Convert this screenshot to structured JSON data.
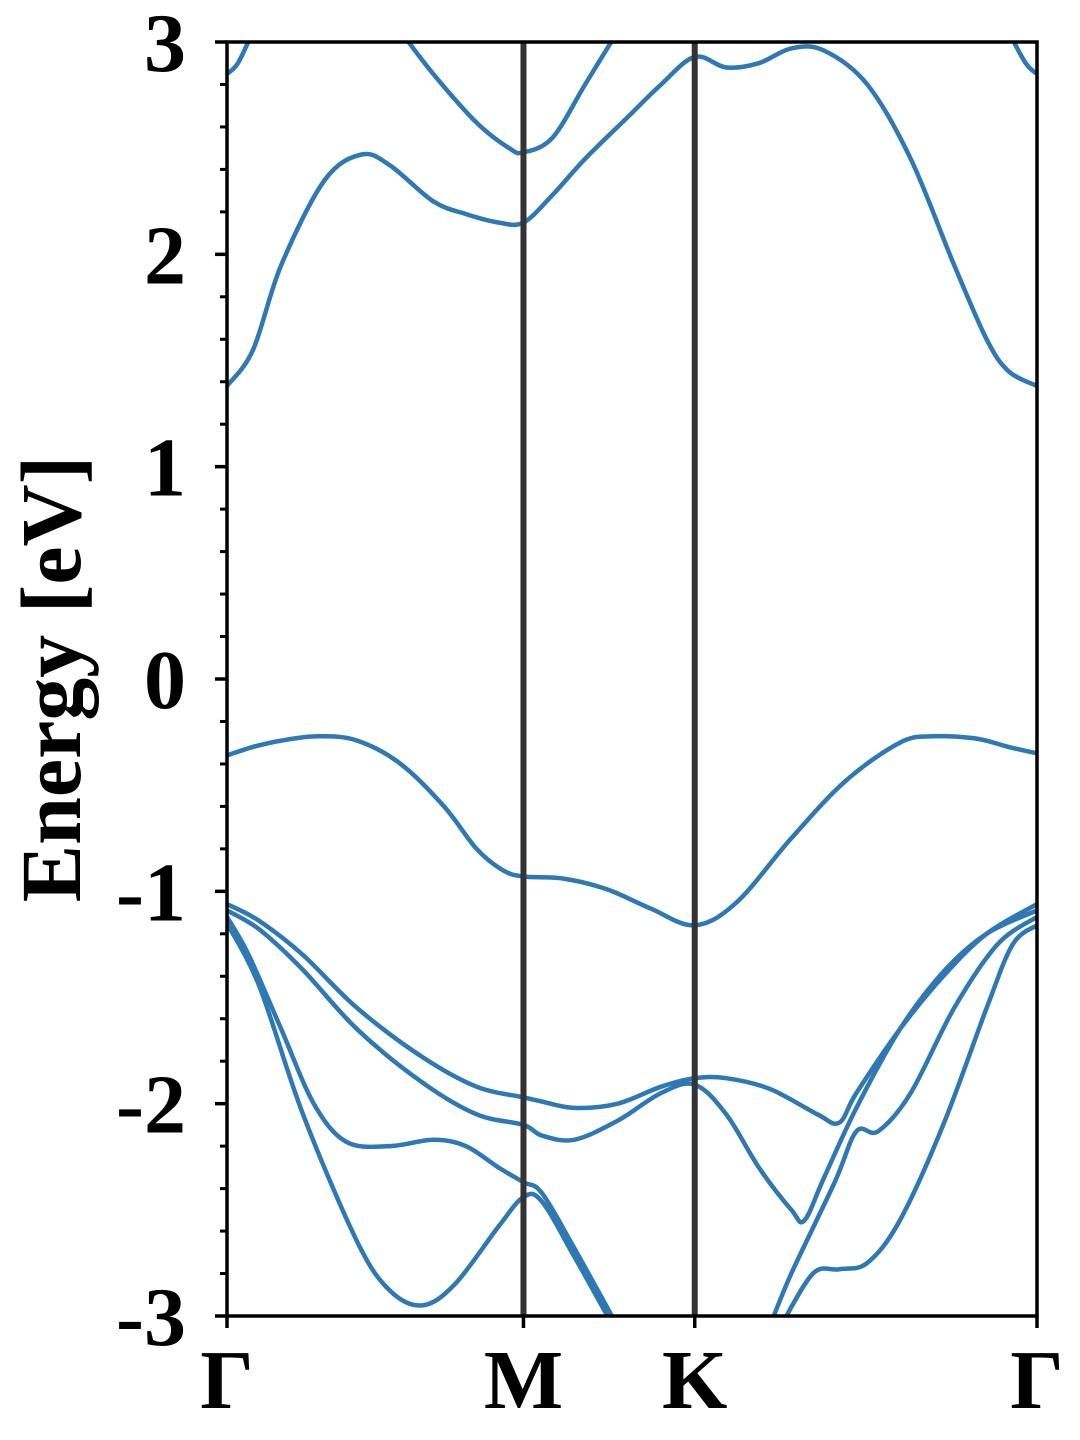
{
  "chart_data": {
    "type": "line",
    "title": "",
    "xlabel": "",
    "ylabel": "Energy [eV]",
    "ylim": [
      -3,
      3
    ],
    "yticks": [
      -3,
      -2,
      -1,
      0,
      1,
      2,
      3
    ],
    "ytick_labels": [
      "-3",
      "-2",
      "-1",
      "0",
      "1",
      "2",
      "3"
    ],
    "x_domain": [
      0,
      3.732
    ],
    "high_symmetry_points": [
      {
        "label": "Γ",
        "x": 0.0
      },
      {
        "label": "M",
        "x": 1.366
      },
      {
        "label": "K",
        "x": 2.155
      },
      {
        "label": "Γ",
        "x": 3.732
      }
    ],
    "grid": false,
    "legend": "none",
    "colors": {
      "bands": "#2e78b4",
      "kpath_lines": "#333333",
      "axes": "#000000"
    },
    "series": [
      {
        "values": [
          [
            0.0,
            -0.36
          ],
          [
            0.12,
            -0.32
          ],
          [
            0.25,
            -0.29
          ],
          [
            0.42,
            -0.27
          ],
          [
            0.6,
            -0.29
          ],
          [
            0.8,
            -0.4
          ],
          [
            1.0,
            -0.6
          ],
          [
            1.15,
            -0.8
          ],
          [
            1.27,
            -0.9
          ],
          [
            1.366,
            -0.93
          ],
          [
            1.55,
            -0.94
          ],
          [
            1.75,
            -0.99
          ],
          [
            1.95,
            -1.08
          ],
          [
            2.155,
            -1.16
          ],
          [
            2.35,
            -1.05
          ],
          [
            2.6,
            -0.75
          ],
          [
            2.85,
            -0.48
          ],
          [
            3.1,
            -0.3
          ],
          [
            3.25,
            -0.27
          ],
          [
            3.45,
            -0.28
          ],
          [
            3.6,
            -0.32
          ],
          [
            3.732,
            -0.35
          ]
        ]
      },
      {
        "values": [
          [
            0.0,
            1.38
          ],
          [
            0.12,
            1.55
          ],
          [
            0.25,
            1.95
          ],
          [
            0.45,
            2.35
          ],
          [
            0.62,
            2.47
          ],
          [
            0.75,
            2.42
          ],
          [
            0.95,
            2.25
          ],
          [
            1.1,
            2.19
          ],
          [
            1.25,
            2.15
          ],
          [
            1.366,
            2.15
          ],
          [
            1.5,
            2.28
          ],
          [
            1.65,
            2.45
          ],
          [
            1.85,
            2.65
          ],
          [
            2.0,
            2.8
          ],
          [
            2.155,
            2.93
          ],
          [
            2.3,
            2.88
          ],
          [
            2.45,
            2.9
          ],
          [
            2.6,
            2.97
          ],
          [
            2.75,
            2.96
          ],
          [
            2.95,
            2.8
          ],
          [
            3.15,
            2.45
          ],
          [
            3.35,
            1.95
          ],
          [
            3.5,
            1.6
          ],
          [
            3.6,
            1.45
          ],
          [
            3.732,
            1.38
          ]
        ]
      },
      {
        "values": [
          [
            0.0,
            2.85
          ],
          [
            0.05,
            2.9
          ],
          [
            0.12,
            3.05
          ]
        ]
      },
      {
        "values": [
          [
            0.8,
            3.05
          ],
          [
            0.95,
            2.85
          ],
          [
            1.15,
            2.62
          ],
          [
            1.3,
            2.5
          ],
          [
            1.366,
            2.48
          ],
          [
            1.5,
            2.55
          ],
          [
            1.65,
            2.8
          ],
          [
            1.8,
            3.05
          ]
        ]
      },
      {
        "values": [
          [
            3.6,
            3.05
          ],
          [
            3.68,
            2.9
          ],
          [
            3.732,
            2.85
          ]
        ]
      },
      {
        "values": [
          [
            0.0,
            -1.06
          ],
          [
            0.15,
            -1.14
          ],
          [
            0.35,
            -1.3
          ],
          [
            0.6,
            -1.55
          ],
          [
            0.9,
            -1.78
          ],
          [
            1.15,
            -1.92
          ],
          [
            1.366,
            -1.97
          ],
          [
            1.45,
            -1.99
          ],
          [
            1.6,
            -2.02
          ],
          [
            1.8,
            -2.0
          ],
          [
            2.0,
            -1.92
          ],
          [
            2.155,
            -1.88
          ],
          [
            2.3,
            -1.88
          ],
          [
            2.5,
            -1.93
          ],
          [
            2.72,
            -2.05
          ],
          [
            2.82,
            -2.09
          ],
          [
            2.9,
            -1.95
          ],
          [
            3.1,
            -1.65
          ],
          [
            3.3,
            -1.4
          ],
          [
            3.5,
            -1.2
          ],
          [
            3.732,
            -1.06
          ]
        ]
      },
      {
        "values": [
          [
            0.0,
            -1.09
          ],
          [
            0.15,
            -1.18
          ],
          [
            0.35,
            -1.37
          ],
          [
            0.6,
            -1.65
          ],
          [
            0.9,
            -1.9
          ],
          [
            1.15,
            -2.05
          ],
          [
            1.366,
            -2.1
          ],
          [
            1.45,
            -2.15
          ],
          [
            1.6,
            -2.17
          ],
          [
            1.8,
            -2.08
          ],
          [
            2.0,
            -1.95
          ],
          [
            2.155,
            -1.91
          ],
          [
            2.3,
            -2.05
          ],
          [
            2.45,
            -2.3
          ],
          [
            2.6,
            -2.5
          ],
          [
            2.66,
            -2.55
          ],
          [
            2.75,
            -2.35
          ],
          [
            2.9,
            -2.02
          ],
          [
            3.1,
            -1.65
          ],
          [
            3.3,
            -1.38
          ],
          [
            3.5,
            -1.2
          ],
          [
            3.732,
            -1.09
          ]
        ]
      },
      {
        "values": [
          [
            0.0,
            -1.12
          ],
          [
            0.1,
            -1.3
          ],
          [
            0.25,
            -1.65
          ],
          [
            0.4,
            -2.0
          ],
          [
            0.55,
            -2.18
          ],
          [
            0.75,
            -2.2
          ],
          [
            0.95,
            -2.17
          ],
          [
            1.1,
            -2.2
          ],
          [
            1.25,
            -2.3
          ],
          [
            1.366,
            -2.37
          ],
          [
            1.45,
            -2.42
          ],
          [
            1.6,
            -2.68
          ],
          [
            1.8,
            -3.05
          ]
        ]
      },
      {
        "values": [
          [
            0.0,
            -1.15
          ],
          [
            0.15,
            -1.45
          ],
          [
            0.35,
            -2.05
          ],
          [
            0.6,
            -2.65
          ],
          [
            0.75,
            -2.88
          ],
          [
            0.9,
            -2.95
          ],
          [
            1.05,
            -2.85
          ],
          [
            1.25,
            -2.58
          ],
          [
            1.366,
            -2.44
          ],
          [
            1.45,
            -2.46
          ],
          [
            1.6,
            -2.72
          ],
          [
            1.78,
            -3.05
          ]
        ]
      },
      {
        "values": [
          [
            2.5,
            -3.05
          ],
          [
            2.6,
            -2.8
          ],
          [
            2.8,
            -2.37
          ],
          [
            2.9,
            -2.13
          ],
          [
            3.0,
            -2.13
          ],
          [
            3.15,
            -1.95
          ],
          [
            3.35,
            -1.55
          ],
          [
            3.55,
            -1.25
          ],
          [
            3.732,
            -1.12
          ]
        ]
      },
      {
        "values": [
          [
            2.55,
            -3.05
          ],
          [
            2.7,
            -2.8
          ],
          [
            2.82,
            -2.78
          ],
          [
            2.95,
            -2.75
          ],
          [
            3.1,
            -2.55
          ],
          [
            3.3,
            -2.1
          ],
          [
            3.5,
            -1.55
          ],
          [
            3.62,
            -1.25
          ],
          [
            3.732,
            -1.16
          ]
        ]
      }
    ]
  }
}
